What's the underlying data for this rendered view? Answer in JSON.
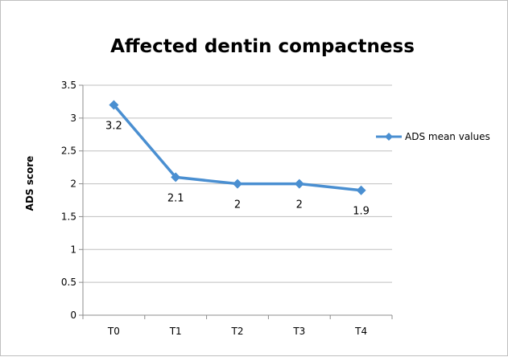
{
  "chart_data": {
    "type": "line",
    "title": "Affected dentin compactness",
    "xlabel": "",
    "ylabel": "ADS score",
    "categories": [
      "T0",
      "T1",
      "T2",
      "T3",
      "T4"
    ],
    "series": [
      {
        "name": "ADS mean values",
        "values": [
          3.2,
          2.1,
          2,
          2,
          1.9
        ],
        "data_labels": [
          "3.2",
          "2.1",
          "2",
          "2",
          "1.9"
        ],
        "color": "#4a8fd1",
        "marker": "diamond"
      }
    ],
    "ylim": [
      0,
      3.5
    ],
    "yticks": [
      "0",
      "0.5",
      "1",
      "1.5",
      "2",
      "2.5",
      "3",
      "3.5"
    ],
    "grid": true,
    "legend": "right"
  }
}
